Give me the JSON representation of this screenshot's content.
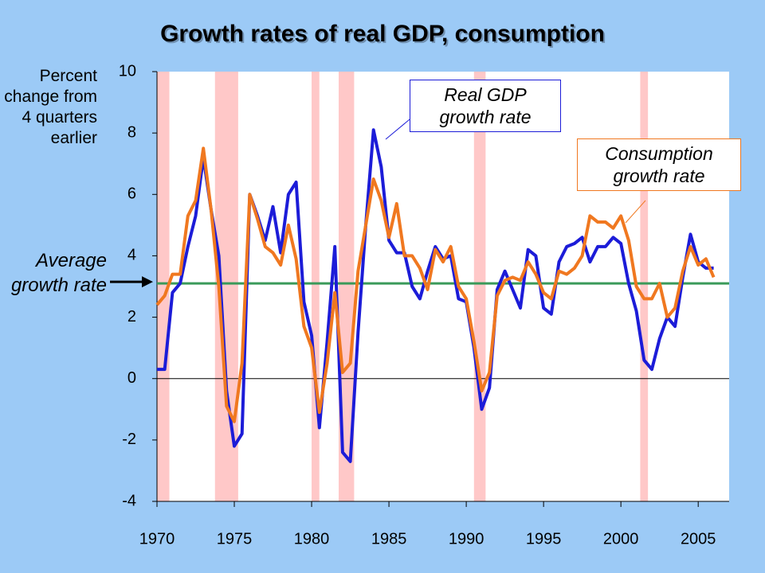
{
  "chart_data": {
    "type": "line",
    "title": "Growth rates of real GDP, consumption",
    "y_axis_label": "Percent change from 4 quarters earlier",
    "x": [
      1970,
      1970.5,
      1971,
      1971.5,
      1972,
      1972.5,
      1973,
      1973.5,
      1974,
      1974.5,
      1975,
      1975.5,
      1976,
      1976.5,
      1977,
      1977.5,
      1978,
      1978.5,
      1979,
      1979.5,
      1980,
      1980.5,
      1981,
      1981.5,
      1982,
      1982.5,
      1983,
      1983.5,
      1984,
      1984.5,
      1985,
      1985.5,
      1986,
      1986.5,
      1987,
      1987.5,
      1988,
      1988.5,
      1989,
      1989.5,
      1990,
      1990.5,
      1991,
      1991.5,
      1992,
      1992.5,
      1993,
      1993.5,
      1994,
      1994.5,
      1995,
      1995.5,
      1996,
      1996.5,
      1997,
      1997.5,
      1998,
      1998.5,
      1999,
      1999.5,
      2000,
      2000.5,
      2001,
      2001.5,
      2002,
      2002.5,
      2003,
      2003.5,
      2004,
      2004.5,
      2005,
      2005.5,
      2006
    ],
    "series": [
      {
        "name": "Real GDP growth rate",
        "color": "#1c1cd8",
        "values": [
          0.3,
          0.3,
          2.8,
          3.1,
          4.3,
          5.3,
          7.2,
          5.5,
          4.0,
          -0.4,
          -2.2,
          -1.8,
          6.0,
          5.3,
          4.5,
          5.6,
          4.1,
          6.0,
          6.4,
          2.5,
          1.4,
          -1.6,
          1.2,
          4.3,
          -2.4,
          -2.7,
          1.5,
          5.0,
          8.1,
          6.9,
          4.5,
          4.1,
          4.1,
          3.0,
          2.6,
          3.5,
          4.3,
          3.9,
          4.0,
          2.6,
          2.5,
          1.0,
          -1.0,
          -0.3,
          2.9,
          3.5,
          2.9,
          2.3,
          4.2,
          4.0,
          2.3,
          2.1,
          3.8,
          4.3,
          4.4,
          4.6,
          3.8,
          4.3,
          4.3,
          4.6,
          4.4,
          3.1,
          2.2,
          0.6,
          0.3,
          1.3,
          2.0,
          1.7,
          3.3,
          4.7,
          3.8,
          3.6,
          3.6
        ]
      },
      {
        "name": "Consumption growth rate",
        "color": "#f07820",
        "values": [
          2.4,
          2.7,
          3.4,
          3.4,
          5.3,
          5.8,
          7.5,
          5.5,
          3.0,
          -0.9,
          -1.4,
          0.5,
          6.0,
          5.2,
          4.3,
          4.1,
          3.7,
          5.0,
          3.9,
          1.7,
          1.0,
          -1.1,
          0.5,
          2.8,
          0.2,
          0.5,
          3.5,
          5.0,
          6.5,
          5.8,
          4.6,
          5.7,
          4.0,
          4.0,
          3.6,
          2.9,
          4.2,
          3.8,
          4.3,
          3.0,
          2.6,
          1.2,
          -0.4,
          0.2,
          2.7,
          3.2,
          3.3,
          3.2,
          3.8,
          3.4,
          2.8,
          2.6,
          3.5,
          3.4,
          3.6,
          4.0,
          5.3,
          5.1,
          5.1,
          4.9,
          5.3,
          4.5,
          3.0,
          2.6,
          2.6,
          3.1,
          2.0,
          2.3,
          3.5,
          4.3,
          3.7,
          3.9,
          3.3
        ]
      }
    ],
    "recessions": [
      [
        1970,
        1970.8
      ],
      [
        1973.75,
        1975.25
      ],
      [
        1980,
        1980.5
      ],
      [
        1981.75,
        1982.75
      ],
      [
        1990.5,
        1991.25
      ],
      [
        2001.25,
        2001.75
      ]
    ],
    "recession_color": "#ffc8c8",
    "average_growth": {
      "label": "Average growth rate",
      "value": 3.1,
      "color": "#3a9a5a"
    },
    "xlim": [
      1970,
      2007
    ],
    "xticks": [
      1970,
      1975,
      1980,
      1985,
      1990,
      1995,
      2000,
      2005
    ],
    "ylim": [
      -4,
      10
    ],
    "yticks": [
      -4,
      -2,
      0,
      2,
      4,
      6,
      8,
      10
    ],
    "grid": false
  }
}
